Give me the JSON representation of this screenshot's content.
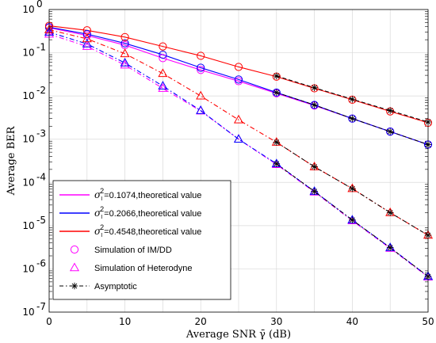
{
  "chart_data": {
    "type": "line",
    "title": "",
    "xlabel": "Average SNR γ̄ (dB)",
    "ylabel": "Average BER",
    "xlim": [
      0,
      50
    ],
    "ylim_log10": [
      -7,
      0
    ],
    "y_scale": "log",
    "grid": true,
    "legend_position": "bottom-left",
    "x": [
      0,
      5,
      10,
      15,
      20,
      25,
      30,
      35,
      40,
      45,
      50
    ],
    "x_ticks": [
      "0",
      "10",
      "20",
      "30",
      "40",
      "50"
    ],
    "y_ticks": [
      {
        "base": "10",
        "exp": "0"
      },
      {
        "base": "10",
        "exp": "-1"
      },
      {
        "base": "10",
        "exp": "-2"
      },
      {
        "base": "10",
        "exp": "-3"
      },
      {
        "base": "10",
        "exp": "-4"
      },
      {
        "base": "10",
        "exp": "-5"
      },
      {
        "base": "10",
        "exp": "-6"
      },
      {
        "base": "10",
        "exp": "-7"
      }
    ],
    "legend": [
      {
        "kind": "line",
        "color": "#ff00ff",
        "sym": "σ",
        "sub": "I",
        "sup": "2",
        "text": "=0.1074,theoretical value"
      },
      {
        "kind": "line",
        "color": "#0000ff",
        "sym": "σ",
        "sub": "I",
        "sup": "2",
        "text": "=0.2066,theoretical value"
      },
      {
        "kind": "line",
        "color": "#ff0000",
        "sym": "σ",
        "sub": "I",
        "sup": "2",
        "text": "=0.4548,theoretical value"
      },
      {
        "kind": "circle",
        "color": "#ff00ff",
        "text": "Simulation of IM/DD"
      },
      {
        "kind": "triangle",
        "color": "#ff00ff",
        "text": "Simulation of Heterodyne"
      },
      {
        "kind": "asymptotic",
        "color": "#000000",
        "text": "Asymptotic"
      }
    ],
    "series": [
      {
        "color": "#ff00ff",
        "scheme": "IM/DD",
        "style": "solid",
        "values": [
          0.38,
          0.25,
          0.15,
          0.075,
          0.04,
          0.022,
          0.0115,
          0.006,
          0.003,
          0.0015,
          0.00075
        ]
      },
      {
        "color": "#0000ff",
        "scheme": "IM/DD",
        "style": "solid",
        "values": [
          0.39,
          0.27,
          0.165,
          0.09,
          0.045,
          0.024,
          0.012,
          0.0062,
          0.003,
          0.0015,
          0.00075
        ]
      },
      {
        "color": "#ff0000",
        "scheme": "IM/DD",
        "style": "solid",
        "values": [
          0.42,
          0.33,
          0.23,
          0.14,
          0.085,
          0.047,
          0.028,
          0.015,
          0.0082,
          0.0044,
          0.0024
        ]
      },
      {
        "color": "#ff00ff",
        "scheme": "Heterodyne",
        "style": "dashdot",
        "values": [
          0.27,
          0.14,
          0.052,
          0.015,
          0.0045,
          0.001,
          0.00026,
          6e-05,
          1.3e-05,
          3e-06,
          6.5e-07
        ]
      },
      {
        "color": "#0000ff",
        "scheme": "Heterodyne",
        "style": "dashdot",
        "values": [
          0.3,
          0.16,
          0.058,
          0.017,
          0.0046,
          0.001,
          0.00027,
          6.2e-05,
          1.35e-05,
          3.1e-06,
          6.7e-07
        ]
      },
      {
        "color": "#ff0000",
        "scheme": "Heterodyne",
        "style": "dashdot",
        "values": [
          0.34,
          0.21,
          0.095,
          0.033,
          0.01,
          0.0028,
          0.00085,
          0.00023,
          7.2e-05,
          2e-05,
          6e-06
        ]
      }
    ],
    "asymptotic": [
      {
        "x": [
          30,
          35,
          40,
          45,
          50
        ],
        "values": [
          0.029,
          0.0155,
          0.0084,
          0.0046,
          0.0025
        ],
        "style": "dashed"
      },
      {
        "x": [
          30,
          35,
          40,
          45,
          50
        ],
        "values": [
          0.012,
          0.0062,
          0.003,
          0.0015,
          0.00075
        ],
        "style": "dashed"
      },
      {
        "x": [
          30,
          35,
          40,
          45,
          50
        ],
        "values": [
          0.00085,
          0.00023,
          7.2e-05,
          2e-05,
          6e-06
        ],
        "style": "dashdot"
      },
      {
        "x": [
          30,
          35,
          40,
          45,
          50
        ],
        "values": [
          0.00027,
          6.2e-05,
          1.35e-05,
          3.1e-06,
          6.7e-07
        ],
        "style": "dashdot"
      }
    ]
  }
}
